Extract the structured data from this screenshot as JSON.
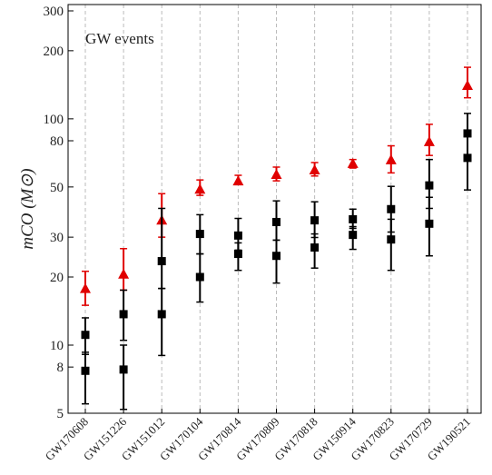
{
  "chart_data": {
    "type": "errorbar",
    "annotation": "GW events",
    "y_label": "mCO (M⊙)",
    "categories": [
      "GW170608",
      "GW151226",
      "GW151012",
      "GW170104",
      "GW170814",
      "GW170809",
      "GW170818",
      "GW150914",
      "GW170823",
      "GW170729",
      "GW190521"
    ],
    "log_y": true,
    "ylim": [
      5,
      320
    ],
    "yticks": [
      5,
      8,
      10,
      20,
      30,
      50,
      80,
      100,
      200,
      300
    ],
    "grid": true,
    "series": [
      {
        "color": "#e00000",
        "marker": "triangle",
        "values": [
          17.8,
          20.6,
          35.7,
          48.9,
          53.2,
          56.8,
          59.5,
          63.6,
          66,
          79.4,
          140.6
        ],
        "lower": [
          15.0,
          17.5,
          30,
          45.9,
          51.2,
          53.2,
          55.9,
          60.6,
          57.7,
          68.9,
          123.9
        ],
        "upper": [
          21.2,
          26.7,
          46.7,
          53.7,
          56.3,
          61.2,
          64.1,
          66.1,
          76,
          94.6,
          169
        ]
      },
      {
        "color": "#000000",
        "marker": "square",
        "values": [
          11.1,
          13.7,
          23.5,
          31,
          30.5,
          35,
          35.6,
          36,
          39.9,
          50.8,
          86.2
        ],
        "lower": [
          9.1,
          10.5,
          17.8,
          25.3,
          26.3,
          29.1,
          29.9,
          32.8,
          31.6,
          40.2,
          68.9
        ],
        "upper": [
          13.2,
          17.5,
          40.2,
          37.7,
          36.3,
          43.4,
          43,
          39.9,
          50.3,
          66.1,
          105.7
        ]
      },
      {
        "color": "#000000",
        "marker": "square",
        "values": [
          7.7,
          7.8,
          13.7,
          20,
          25.3,
          24.8,
          27,
          30.7,
          29.3,
          34.4,
          67.2
        ],
        "lower": [
          5.5,
          5.2,
          9.0,
          15.5,
          21.4,
          18.8,
          21.9,
          26.5,
          21.4,
          24.8,
          48.5
        ],
        "upper": [
          9.3,
          10,
          17.8,
          25.3,
          28.3,
          29.1,
          31,
          33.4,
          36,
          45,
          86.2
        ]
      }
    ]
  }
}
